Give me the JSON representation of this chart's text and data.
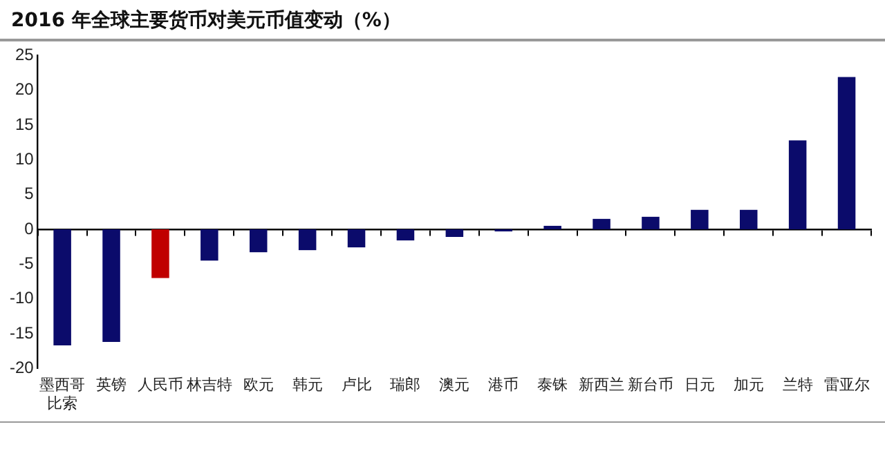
{
  "chart_data": {
    "type": "bar",
    "title": "2016 年全球主要货币对美元币值变动（%）",
    "categories": [
      "墨西哥比索",
      "英镑",
      "人民币",
      "林吉特",
      "欧元",
      "韩元",
      "卢比",
      "瑞郎",
      "澳元",
      "港币",
      "泰铢",
      "新西兰",
      "新台币",
      "日元",
      "加元",
      "兰特",
      "雷亚尔"
    ],
    "values": [
      -16.7,
      -16.2,
      -7.0,
      -4.5,
      -3.3,
      -3.0,
      -2.6,
      -1.6,
      -1.1,
      -0.3,
      0.5,
      1.5,
      1.8,
      2.8,
      2.8,
      12.8,
      21.9
    ],
    "colors": [
      "#0b0b6b",
      "#0b0b6b",
      "#c00000",
      "#0b0b6b",
      "#0b0b6b",
      "#0b0b6b",
      "#0b0b6b",
      "#0b0b6b",
      "#0b0b6b",
      "#0b0b6b",
      "#0b0b6b",
      "#0b0b6b",
      "#0b0b6b",
      "#0b0b6b",
      "#0b0b6b",
      "#0b0b6b",
      "#0b0b6b"
    ],
    "ylim": [
      -20,
      25
    ],
    "yticks": [
      -20,
      -15,
      -10,
      -5,
      0,
      5,
      10,
      15,
      20,
      25
    ],
    "legend": false
  }
}
